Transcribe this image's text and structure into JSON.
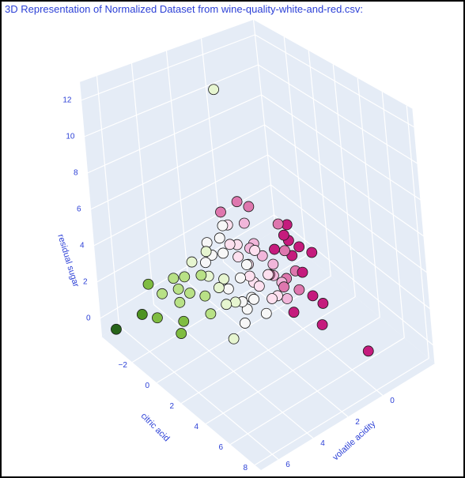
{
  "chart_data": {
    "type": "scatter3d",
    "title": "3D Representation of Normalized Dataset from wine-quality-white-and-red.csv:",
    "xlabel": "citric acid",
    "ylabel": "volatile acidity",
    "zlabel": "residual sugar",
    "xlim": [
      -4.5,
      8.5
    ],
    "ylim": [
      -3,
      7
    ],
    "zlim": [
      -1,
      13
    ],
    "xticks": [
      {
        "value": -2,
        "label": "−2"
      },
      0,
      2,
      4,
      6,
      8
    ],
    "yticks": [
      0,
      2,
      4,
      6
    ],
    "zticks": [
      0,
      2,
      4,
      6,
      8,
      10,
      12
    ],
    "grid": true,
    "x": [
      0,
      -0.5,
      0.5,
      -1,
      0.3,
      -0.8,
      1,
      -1.5,
      0.8,
      -0.2,
      -1.2,
      1.5,
      0.2,
      -0.6,
      3.5,
      6.6,
      2.5,
      1.8,
      -1,
      -0.5,
      0.5,
      -1.5,
      0,
      -2,
      1,
      -1,
      -2.2,
      0.2,
      -1.36,
      -1.8,
      -3.5,
      -1.5,
      -1,
      0,
      -2,
      0.5,
      -2.5,
      -0.5,
      -1.8,
      -3,
      0.8,
      -1.2,
      -2.8,
      -1.5,
      -2.5,
      -0.5,
      -3,
      0,
      -2,
      -3.5,
      -1,
      -4,
      -0.5,
      -2.8,
      -3.8,
      -1.2,
      0.5,
      0,
      -2,
      -3,
      -1,
      -3.5,
      -4.2,
      -1.5,
      -2.5,
      -0.07,
      -3,
      -4,
      -2.5,
      -4.5,
      -3.5,
      -1.5,
      0.5,
      -3,
      -2,
      -3.5,
      -4,
      -1.5,
      -4.5,
      -3,
      -3.5,
      -3.87
    ],
    "y": [
      -1,
      -1.2,
      -0.8,
      -1.5,
      -1.3,
      -0.9,
      -0.6,
      -1,
      -1.6,
      -0.7,
      -1.4,
      -1,
      -0.5,
      -1.8,
      -0.14,
      -0.6,
      -0.9,
      0.3,
      0,
      -0.2,
      0,
      0.1,
      -0.4,
      0.2,
      0.1,
      -0.3,
      -0.1,
      0.2,
      0.89,
      0,
      0.5,
      0.5,
      0.6,
      0.4,
      0.7,
      0.3,
      0.4,
      0.7,
      0.3,
      0.5,
      0.8,
      0.2,
      0.6,
      1,
      1.2,
      1.1,
      1,
      1.3,
      1.4,
      1.2,
      0.9,
      1.1,
      1.4,
      0.9,
      1.4,
      1.2,
      1,
      1.9,
      1.6,
      1.8,
      1.7,
      1.5,
      1.9,
      1.9,
      1.6,
      2.44,
      2.2,
      2.5,
      2.4,
      2.8,
      2.6,
      2.8,
      2.9,
      3.5,
      4,
      3.2,
      3.8,
      4.5,
      4.2,
      4.8,
      5.3,
      6.56
    ],
    "z": [
      1.5,
      2,
      1,
      2.5,
      0.5,
      3,
      0.3,
      1,
      1.8,
      0.2,
      1.8,
      0,
      2.2,
      1.2,
      0,
      0,
      0.2,
      0,
      1.5,
      0.5,
      0.8,
      2,
      0,
      3,
      0.2,
      0.2,
      1.2,
      1.8,
      5,
      4,
      3,
      1,
      0.3,
      1.2,
      2,
      0.2,
      0.8,
      2.5,
      0,
      2.5,
      0.5,
      -0.3,
      1.5,
      0.5,
      1.5,
      0,
      2,
      0.3,
      -0.2,
      0.8,
      1.5,
      1.2,
      -0.5,
      2.8,
      0.3,
      -0.6,
      -0.4,
      -0.7,
      0.5,
      0.2,
      -0.2,
      1.2,
      0.4,
      -0.5,
      -0.3,
      12.7,
      0.5,
      0,
      -0.3,
      -0.2,
      -0.6,
      -0.5,
      -0.7,
      -0.3,
      -0.5,
      0,
      -0.2,
      -0.6,
      0.3,
      -0.4,
      -0.2,
      -0.5
    ],
    "colors": [
      "#c51b7d",
      "#c51b7d",
      "#de77ae",
      "#c51b7d",
      "#c51b7d",
      "#de77ae",
      "#de77ae",
      "#c51b7d",
      "#c51b7d",
      "#de77ae",
      "#c51b7d",
      "#c51b7d",
      "#de77ae",
      "#c51b7d",
      "#c51b7d",
      "#c51b7d",
      "#c51b7d",
      "#c51b7d",
      "#f1b6da",
      "#f1b6da",
      "#f1b6da",
      "#f1b6da",
      "#de77ae",
      "#f1b6da",
      "#f1b6da",
      "#de77ae",
      "#f1b6da",
      "#f1b6da",
      "#de77ae",
      "#de77ae",
      "#de77ae",
      "#fde0ef",
      "#fde0ef",
      "#fde0ef",
      "#fde0ef",
      "#fde0ef",
      "#fde0ef",
      "#fde0ef",
      "#fde0ef",
      "#fde0ef",
      "#fde0ef",
      "#fde0ef",
      "#fde0ef",
      "#f7f7f7",
      "#f7f7f7",
      "#f7f7f7",
      "#f7f7f7",
      "#f7f7f7",
      "#f7f7f7",
      "#f7f7f7",
      "#f7f7f7",
      "#f7f7f7",
      "#f7f7f7",
      "#f7f7f7",
      "#f7f7f7",
      "#f7f7f7",
      "#f7f7f7",
      "#f7f7f7",
      "#e6f5d0",
      "#e6f5d0",
      "#e6f5d0",
      "#e6f5d0",
      "#e6f5d0",
      "#e6f5d0",
      "#e6f5d0",
      "#e6f5d0",
      "#b8e186",
      "#b8e186",
      "#b8e186",
      "#b8e186",
      "#b8e186",
      "#b8e186",
      "#e6f5d0",
      "#b8e186",
      "#7fbc41",
      "#b8e186",
      "#b8e186",
      "#7fbc41",
      "#7fbc41",
      "#7fbc41",
      "#4d9221",
      "#276419"
    ]
  }
}
